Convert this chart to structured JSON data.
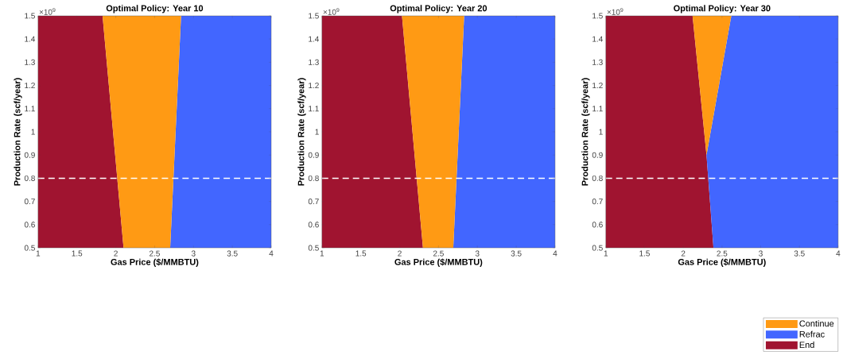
{
  "chart_data": [
    {
      "type": "area",
      "title": "Optimal Policy: Year 10",
      "xlabel": "Gas Price ($/MMBTU)",
      "ylabel": "Production Rate (scf/year)",
      "annotations": [
        "×10$^{9}$"
      ],
      "xlim": [
        1,
        4
      ],
      "ylim": [
        0.5,
        1.5
      ],
      "xticks": [
        1,
        1.5,
        2,
        2.5,
        3,
        3.5,
        4
      ],
      "yticks": [
        0.5,
        0.6,
        0.7,
        0.8,
        0.9,
        1,
        1.1,
        1.2,
        1.3,
        1.4,
        1.5
      ],
      "grid": false,
      "legend": false,
      "ref_lines": [
        {
          "axis": "y",
          "value": 0.8,
          "color": "#ffffff",
          "line_style": "dashed"
        }
      ],
      "series": [
        {
          "color": "#ff9a14",
          "x": [
            2.1,
            2.7,
            2.84,
            1.83
          ],
          "values": [
            0.5,
            0.5,
            1.5,
            1.5
          ]
        },
        {
          "color": "#4266ff",
          "x": [
            2.7,
            4,
            4,
            2.84
          ],
          "values": [
            0.5,
            0.5,
            1.5,
            1.5
          ]
        },
        {
          "color": "#a01430",
          "x": [
            1,
            2.1,
            1.83,
            1
          ],
          "values": [
            0.5,
            0.5,
            1.5,
            1.5
          ]
        }
      ]
    },
    {
      "type": "area",
      "title": "Optimal Policy: Year 20",
      "xlabel": "Gas Price ($/MMBTU)",
      "ylabel": "Production Rate (scf/year)",
      "annotations": [
        "×10$^{9}$"
      ],
      "xlim": [
        1,
        4
      ],
      "ylim": [
        0.5,
        1.5
      ],
      "xticks": [
        1,
        1.5,
        2,
        2.5,
        3,
        3.5,
        4
      ],
      "yticks": [
        0.5,
        0.6,
        0.7,
        0.8,
        0.9,
        1,
        1.1,
        1.2,
        1.3,
        1.4,
        1.5
      ],
      "grid": false,
      "legend": false,
      "ref_lines": [
        {
          "axis": "y",
          "value": 0.8,
          "color": "#ffffff",
          "line_style": "dashed"
        }
      ],
      "series": [
        {
          "color": "#ff9a14",
          "x": [
            2.3,
            2.69,
            2.83,
            2.03
          ],
          "values": [
            0.5,
            0.5,
            1.5,
            1.5
          ]
        },
        {
          "color": "#4266ff",
          "x": [
            2.69,
            4,
            4,
            2.83
          ],
          "values": [
            0.5,
            0.5,
            1.5,
            1.5
          ]
        },
        {
          "color": "#a01430",
          "x": [
            1,
            2.3,
            2.03,
            1
          ],
          "values": [
            0.5,
            0.5,
            1.5,
            1.5
          ]
        }
      ]
    },
    {
      "type": "area",
      "title": "Optimal Policy: Year 30",
      "xlabel": "Gas Price ($/MMBTU)",
      "ylabel": "Production Rate (scf/year)",
      "annotations": [
        "×10$^{9}$"
      ],
      "xlim": [
        1,
        4
      ],
      "ylim": [
        0.5,
        1.5
      ],
      "xticks": [
        1,
        1.5,
        2,
        2.5,
        3,
        3.5,
        4
      ],
      "yticks": [
        0.5,
        0.6,
        0.7,
        0.8,
        0.9,
        1,
        1.1,
        1.2,
        1.3,
        1.4,
        1.5
      ],
      "grid": false,
      "legend": "bottom right",
      "ref_lines": [
        {
          "axis": "y",
          "value": 0.8,
          "color": "#ffffff",
          "line_style": "dashed"
        }
      ],
      "series": [
        {
          "name": "Continue",
          "color": "#ff9a14",
          "x": [
            2.3,
            2.62,
            2.12
          ],
          "values": [
            0.9,
            1.5,
            1.5
          ]
        },
        {
          "name": "Refrac",
          "color": "#4266ff",
          "x": [
            2.39,
            4,
            4,
            2.62,
            2.3
          ],
          "values": [
            0.5,
            0.5,
            1.5,
            1.5,
            0.9
          ]
        },
        {
          "name": "End",
          "color": "#a01430",
          "x": [
            1,
            2.39,
            2.3,
            2.12,
            1
          ],
          "values": [
            0.5,
            0.5,
            0.9,
            1.5,
            1.5
          ]
        }
      ]
    }
  ]
}
